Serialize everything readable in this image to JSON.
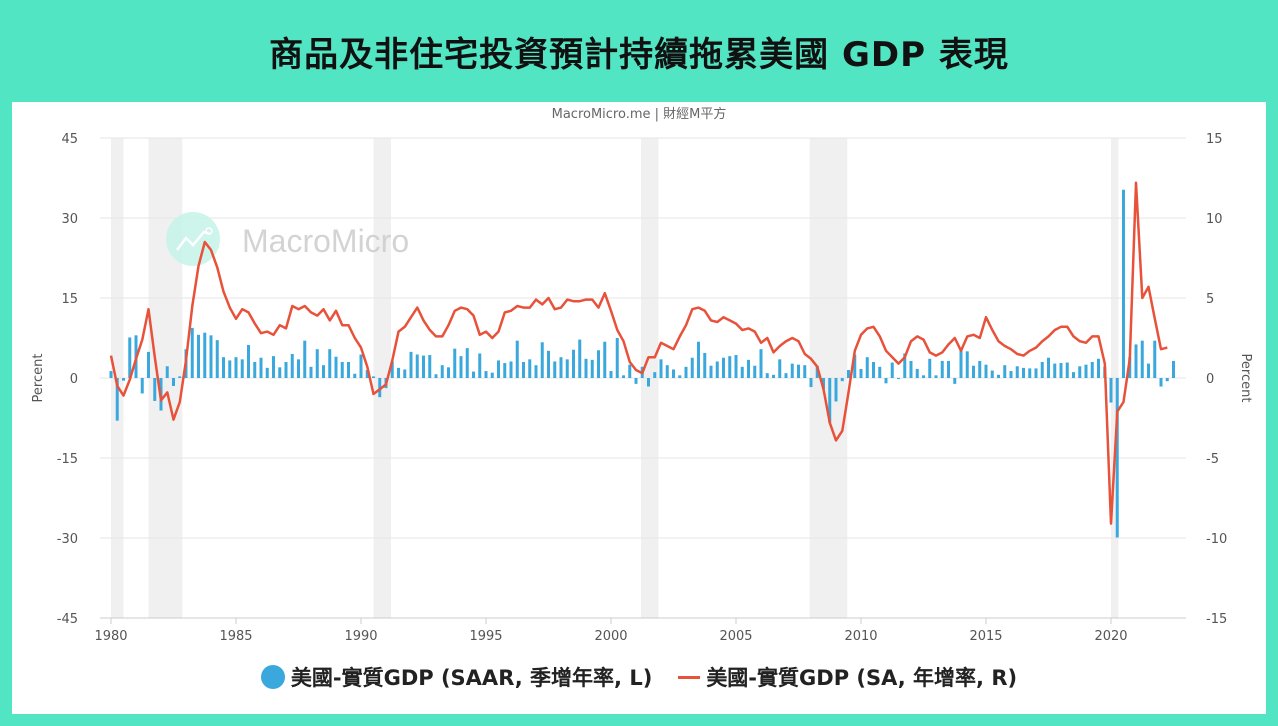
{
  "title": "商品及非住宅投資預計持續拖累美國 GDP 表現",
  "credit": "MacroMicro.me | 財經M平方",
  "watermark": "MacroMicro",
  "colors": {
    "background": "#52e5c3",
    "bar": "#3aa8dc",
    "line": "#e8513a",
    "recession": "#f0f0f0",
    "grid": "#e6e6e6"
  },
  "legend": {
    "bar_label": "美國-實質GDP (SAAR, 季增年率, L)",
    "line_label": "美國-實質GDP (SA, 年增率, R)"
  },
  "chart_data": {
    "type": "bar+line",
    "title": "商品及非住宅投資預計持續拖累美國 GDP 表現",
    "subtitle": "MacroMicro.me | 財經M平方",
    "xlabel": "",
    "ylabel_left": "Percent",
    "ylabel_right": "Percent",
    "x_ticks": [
      "1980",
      "1985",
      "1990",
      "1995",
      "2000",
      "2005",
      "2010",
      "2015",
      "2020"
    ],
    "y_left_ticks": [
      45,
      30,
      15,
      0,
      -15,
      -30,
      -45
    ],
    "y_right_ticks": [
      15,
      10,
      5,
      0,
      -5,
      -10,
      -15
    ],
    "ylim_left": [
      -45,
      45
    ],
    "ylim_right": [
      -15,
      15
    ],
    "xlim": [
      1979.9,
      2023.1
    ],
    "grid": true,
    "legend_position": "bottom",
    "recessions": [
      [
        1980.0,
        1980.5
      ],
      [
        1981.5,
        1982.85
      ],
      [
        1990.5,
        1991.2
      ],
      [
        2001.2,
        2001.9
      ],
      [
        2007.95,
        2009.45
      ],
      [
        2020.0,
        2020.3
      ]
    ],
    "start_quarter": 1980.0,
    "series": [
      {
        "name": "美國-實質GDP (SAAR, 季增年率, L)",
        "type": "bar",
        "axis": "left",
        "values": [
          1.3,
          -8.0,
          -0.5,
          7.6,
          8.0,
          -2.9,
          4.9,
          -4.3,
          -6.1,
          2.2,
          -1.5,
          0.3,
          5.4,
          9.4,
          8.1,
          8.5,
          8.0,
          7.1,
          3.9,
          3.3,
          3.9,
          3.5,
          6.2,
          3.0,
          3.8,
          1.9,
          4.1,
          2.0,
          3.0,
          4.5,
          3.5,
          7.0,
          2.1,
          5.4,
          2.4,
          5.4,
          4.0,
          3.0,
          3.0,
          0.8,
          4.4,
          1.5,
          0.3,
          -3.6,
          -1.9,
          3.1,
          1.9,
          1.6,
          4.9,
          4.4,
          4.2,
          4.3,
          0.7,
          2.4,
          2.0,
          5.5,
          4.1,
          5.6,
          1.2,
          4.6,
          1.3,
          1.0,
          3.3,
          2.8,
          3.1,
          7.0,
          3.0,
          3.5,
          2.4,
          6.7,
          5.1,
          3.1,
          3.9,
          3.5,
          5.3,
          7.2,
          3.6,
          3.4,
          5.2,
          6.8,
          1.3,
          7.5,
          0.5,
          2.5,
          -1.1,
          2.1,
          -1.6,
          1.1,
          3.5,
          2.4,
          1.6,
          0.5,
          2.1,
          3.8,
          6.8,
          4.7,
          2.3,
          3.1,
          3.8,
          4.1,
          4.3,
          2.1,
          3.4,
          2.3,
          5.4,
          0.9,
          0.6,
          3.5,
          0.9,
          2.7,
          2.5,
          2.4,
          -1.7,
          2.3,
          -2.1,
          -8.4,
          -4.4,
          -0.6,
          1.5,
          4.4,
          1.7,
          3.9,
          3.0,
          2.1,
          -1.0,
          2.9,
          -0.1,
          4.6,
          3.2,
          1.7,
          0.5,
          3.6,
          0.5,
          3.2,
          3.2,
          -1.1,
          5.5,
          5.0,
          2.3,
          3.2,
          2.5,
          1.4,
          0.6,
          2.4,
          1.3,
          2.2,
          1.9,
          1.8,
          1.8,
          3.0,
          3.8,
          2.7,
          2.8,
          2.9,
          1.1,
          2.2,
          2.5,
          3.0,
          3.6,
          2.1,
          -4.6,
          -29.9,
          35.3,
          3.9,
          6.3,
          7.0,
          2.7,
          7.0,
          -1.6,
          -0.6,
          3.2
        ]
      },
      {
        "name": "美國-實質GDP (SA, 年增率, R)",
        "type": "line",
        "axis": "right",
        "values": [
          1.4,
          -0.5,
          -1.1,
          -0.1,
          1.2,
          2.4,
          4.3,
          1.3,
          -1.4,
          -0.9,
          -2.6,
          -1.5,
          1.1,
          4.5,
          7.0,
          8.5,
          8.0,
          6.9,
          5.4,
          4.4,
          3.7,
          4.3,
          4.1,
          3.4,
          2.8,
          2.9,
          2.7,
          3.3,
          3.1,
          4.5,
          4.3,
          4.5,
          4.1,
          3.9,
          4.3,
          3.6,
          4.2,
          3.3,
          3.3,
          2.5,
          1.9,
          0.7,
          -1.0,
          -0.7,
          -0.4,
          1.1,
          2.9,
          3.2,
          3.8,
          4.4,
          3.6,
          3.0,
          2.6,
          2.6,
          3.3,
          4.2,
          4.4,
          4.3,
          3.9,
          2.7,
          2.9,
          2.5,
          2.9,
          4.1,
          4.2,
          4.5,
          4.4,
          4.4,
          4.9,
          4.6,
          5.0,
          4.3,
          4.4,
          4.9,
          4.8,
          4.8,
          4.9,
          4.9,
          4.4,
          5.3,
          4.2,
          3.0,
          2.3,
          1.0,
          0.5,
          0.3,
          1.3,
          1.3,
          2.2,
          2.0,
          1.8,
          2.6,
          3.3,
          4.3,
          4.4,
          4.2,
          3.6,
          3.5,
          3.8,
          3.6,
          3.4,
          3.0,
          3.1,
          2.9,
          2.2,
          2.5,
          1.6,
          2.0,
          2.3,
          2.5,
          2.3,
          1.5,
          1.2,
          0.7,
          -0.7,
          -2.8,
          -3.9,
          -3.3,
          -0.9,
          1.7,
          2.7,
          3.1,
          3.2,
          2.6,
          1.7,
          1.3,
          0.9,
          1.3,
          2.3,
          2.6,
          2.4,
          1.6,
          1.4,
          1.6,
          2.1,
          2.5,
          1.7,
          2.6,
          2.7,
          2.5,
          3.8,
          3.0,
          2.3,
          2.0,
          1.8,
          1.5,
          1.4,
          1.7,
          1.9,
          2.3,
          2.6,
          3.0,
          3.2,
          3.2,
          2.6,
          2.3,
          2.2,
          2.6,
          2.6,
          0.9,
          -9.1,
          -2.1,
          -1.5,
          1.2,
          12.2,
          5.0,
          5.7,
          3.7,
          1.8,
          1.9
        ]
      }
    ]
  }
}
